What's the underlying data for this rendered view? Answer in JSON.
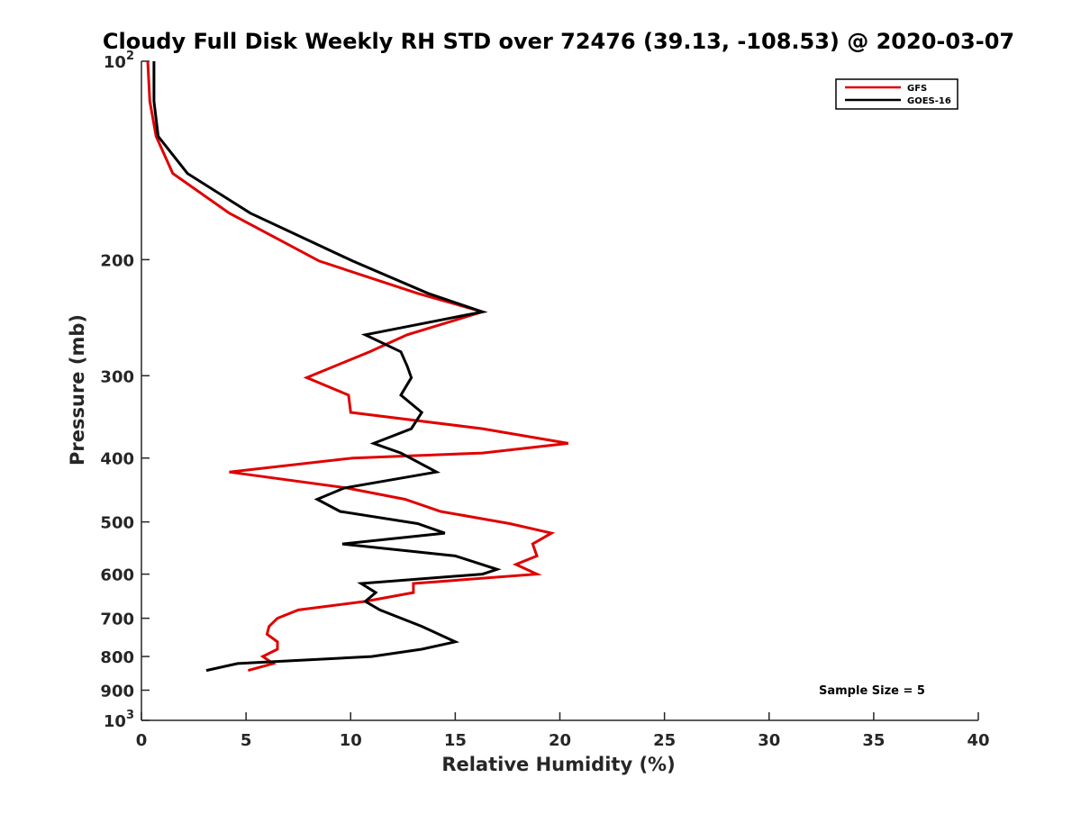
{
  "chart_data": {
    "type": "line",
    "title": "Cloudy Full Disk Weekly RH STD over 72476 (39.13, -108.53) @ 2020-03-07",
    "xlabel": "Relative Humidity (%)",
    "ylabel": "Pressure (mb)",
    "xlim": [
      0,
      40
    ],
    "ylim": [
      100,
      1000
    ],
    "y_scale": "log",
    "y_reversed": true,
    "grid": false,
    "legend_position": "top-right",
    "x_ticks": [
      0,
      5,
      10,
      15,
      20,
      25,
      30,
      35,
      40
    ],
    "x_tick_labels": [
      "0",
      "5",
      "10",
      "15",
      "20",
      "25",
      "30",
      "35",
      "40"
    ],
    "y_ticks": [
      100,
      200,
      300,
      400,
      500,
      600,
      700,
      800,
      900,
      1000
    ],
    "y_tick_labels": [
      {
        "base": "10",
        "sup": "2"
      },
      {
        "base": "200",
        "sup": ""
      },
      {
        "base": "300",
        "sup": ""
      },
      {
        "base": "400",
        "sup": ""
      },
      {
        "base": "500",
        "sup": ""
      },
      {
        "base": "600",
        "sup": ""
      },
      {
        "base": "700",
        "sup": ""
      },
      {
        "base": "800",
        "sup": ""
      },
      {
        "base": "900",
        "sup": ""
      },
      {
        "base": "10",
        "sup": "3"
      }
    ],
    "annotation": "Sample Size = 5",
    "series": [
      {
        "name": "GFS",
        "color": "#e00000",
        "points": [
          [
            0.3,
            100
          ],
          [
            0.4,
            115
          ],
          [
            0.7,
            130
          ],
          [
            1.5,
            148
          ],
          [
            4.2,
            170
          ],
          [
            8.5,
            201
          ],
          [
            13.2,
            225
          ],
          [
            16.3,
            240
          ],
          [
            12.7,
            260
          ],
          [
            10.9,
            276
          ],
          [
            7.9,
            302
          ],
          [
            9.9,
            321
          ],
          [
            10.0,
            341
          ],
          [
            16.3,
            361
          ],
          [
            20.4,
            380
          ],
          [
            16.3,
            393
          ],
          [
            10.1,
            400
          ],
          [
            4.2,
            420
          ],
          [
            9.8,
            444
          ],
          [
            12.6,
            462
          ],
          [
            14.3,
            482
          ],
          [
            17.6,
            503
          ],
          [
            19.6,
            520
          ],
          [
            18.7,
            540
          ],
          [
            18.9,
            563
          ],
          [
            17.9,
            580
          ],
          [
            18.9,
            600
          ],
          [
            13.0,
            620
          ],
          [
            13.0,
            640
          ],
          [
            10.7,
            660
          ],
          [
            7.5,
            680
          ],
          [
            6.5,
            700
          ],
          [
            6.1,
            720
          ],
          [
            6.0,
            740
          ],
          [
            6.5,
            760
          ],
          [
            6.5,
            780
          ],
          [
            5.8,
            800
          ],
          [
            6.3,
            820
          ],
          [
            5.1,
            840
          ]
        ]
      },
      {
        "name": "GOES-16",
        "color": "#000000",
        "points": [
          [
            0.6,
            100
          ],
          [
            0.6,
            115
          ],
          [
            0.8,
            130
          ],
          [
            2.2,
            148
          ],
          [
            5.2,
            170
          ],
          [
            10.1,
            201
          ],
          [
            13.7,
            225
          ],
          [
            16.3,
            240
          ],
          [
            10.7,
            260
          ],
          [
            12.4,
            276
          ],
          [
            12.7,
            290
          ],
          [
            12.9,
            302
          ],
          [
            12.4,
            321
          ],
          [
            13.4,
            341
          ],
          [
            12.9,
            361
          ],
          [
            11.1,
            380
          ],
          [
            12.4,
            393
          ],
          [
            14.1,
            420
          ],
          [
            9.7,
            444
          ],
          [
            8.4,
            462
          ],
          [
            9.5,
            482
          ],
          [
            13.2,
            503
          ],
          [
            14.5,
            520
          ],
          [
            9.6,
            540
          ],
          [
            15.0,
            563
          ],
          [
            17.0,
            590
          ],
          [
            16.3,
            600
          ],
          [
            10.5,
            620
          ],
          [
            11.2,
            640
          ],
          [
            10.7,
            660
          ],
          [
            11.4,
            680
          ],
          [
            13.4,
            720
          ],
          [
            15.0,
            760
          ],
          [
            13.4,
            780
          ],
          [
            11.0,
            800
          ],
          [
            4.6,
            820
          ],
          [
            3.1,
            840
          ]
        ]
      }
    ]
  }
}
